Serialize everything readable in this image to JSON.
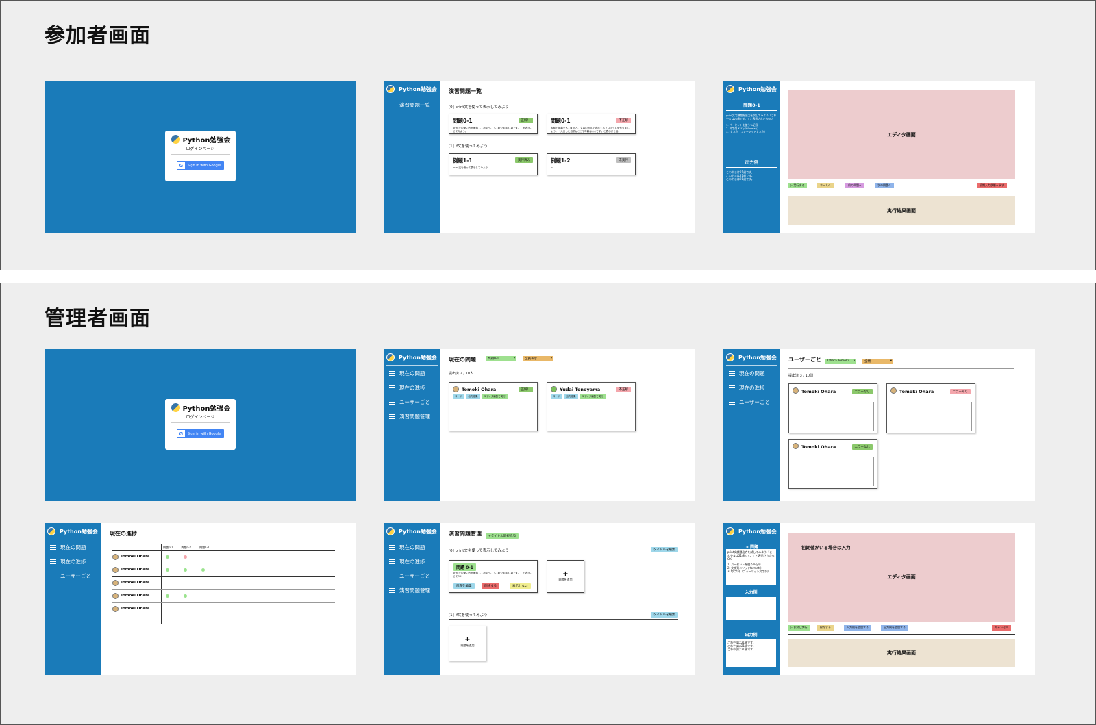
{
  "brand": "Python勉強会",
  "participant": {
    "title": "参加者画面",
    "login": {
      "brand": "Python勉強会",
      "subtitle": "ログインページ",
      "google": "Sign in with Google"
    },
    "list": {
      "nav": [
        "演習問題一覧"
      ],
      "title": "演習問題一覧",
      "group0": "[0] print文を使って表示してみよう",
      "group1": "[1] if文を使ってみよう",
      "cards": [
        {
          "name": "問題0-1",
          "badge": "正解！",
          "desc": "print文の使い方を確認してみよう。「こわやまは21歳です。」を表示させてみよう。"
        },
        {
          "name": "問題0-1",
          "badge": "不正解",
          "desc": "名前と年齢を入力すると、文章の形式で表示するプログラムを作りましょう。「入力した名前は○○で年齢は○○です」と表示させる。"
        },
        {
          "name": "例題1-1",
          "badge": "実行済み",
          "desc": "print文を使って表示してみよう"
        },
        {
          "name": "例題1-2",
          "badge": "未実行",
          "desc": ">"
        }
      ]
    },
    "editor": {
      "problem_title": "問題0-1",
      "problem_text": "print文で課題を出力を試してみよう「こわやまは21歳です。」と表示されたらOK！",
      "hints": [
        "1. パーセントを使う%記号",
        "2. 文字列メソッドformat()",
        "3. f文字列（フォーマット文字列）"
      ],
      "output_title": "出力例",
      "output_lines": [
        "こわやまは21歳です。",
        "こわやまは21歳です。",
        "こわやまは21歳です。"
      ],
      "editor_label": "エディタ画面",
      "result_label": "実行結果画面",
      "buttons": [
        "▷ 実行する",
        "ホームへ",
        "前の問題へ",
        "次の問題へ",
        "初期入力状態へ戻す"
      ]
    }
  },
  "admin": {
    "title": "管理者画面",
    "login": {
      "brand": "Python勉強会",
      "subtitle": "ログインページ",
      "google": "Sign in with Google"
    },
    "nav_basic": [
      "現在の問題",
      "現在の進捗",
      "ユーザーごと"
    ],
    "nav_full": [
      "現在の問題",
      "現在の進捗",
      "ユーザーごと",
      "演習問題管理"
    ],
    "current": {
      "title": "現在の問題",
      "select1": "問題0-1",
      "select2": "全員表示",
      "progress": "提出済 2 / 10人",
      "cards": [
        {
          "user": "Tomoki Ohara",
          "badge": "正解！"
        },
        {
          "user": "Yudai Tonoyama",
          "badge": "不正解"
        }
      ],
      "tags": [
        "コード",
        "出力結果",
        "エディタ編集で実行"
      ]
    },
    "byuser": {
      "title": "ユーザーごと",
      "select1": "Ohara Tomoki",
      "select2": "全問",
      "progress": "提出済 3 / 10問",
      "cards": [
        {
          "user": "Tomoki Ohara",
          "badge": "エラーなし"
        },
        {
          "user": "Tomoki Ohara",
          "badge": "エラーあり"
        },
        {
          "user": "Tomoki Ohara",
          "badge": "エラーなし"
        }
      ]
    },
    "progress": {
      "title": "現在の進捗",
      "cols": [
        "問題0-1",
        "問題0-2",
        "問題1-1"
      ],
      "users": [
        "Tomoki Ohara",
        "Tomoki Ohara",
        "Tomoki Ohara",
        "Tomoki Ohara",
        "Tomoki Ohara"
      ]
    },
    "manage": {
      "title": "演習問題管理",
      "add_title": "+タイトル新規追加",
      "group0": "[0] print文を使って表示してみよう",
      "group1": "[1] if文を使ってみよう",
      "edit_title": "タイトルを編集",
      "card_name": "問題 0-1",
      "card_desc": "print文の使い方を確認してみよう。「こわやまは21歳です。」と表示させてOK！",
      "card_btns": [
        "内容を編集",
        "削除する",
        "表示しない"
      ],
      "add_problem": "問題を追加"
    },
    "edit": {
      "problem_label": "> 問題",
      "problem_text": "print文課題出力を試してみよう「こわやまは21歳です。」と表示されたらOK！",
      "hints": [
        "1. パーセントを使う%記号",
        "2. 文字列メソッドformat()",
        "3. f文字列（フォーマット文字列）"
      ],
      "input_title": "入力例",
      "output_title": "出力例",
      "output_lines": [
        "こわやまは21歳です。",
        "こわやまは21歳です。",
        "こわやまは21歳です。"
      ],
      "initial_label": "初期値がいる場合は入力",
      "editor_label": "エディタ画面",
      "result_label": "実行結果画面",
      "buttons": [
        "▷ お試し実行",
        "保存する",
        "入力例を追加する",
        "出力例を追加する",
        "キャンセル"
      ]
    }
  }
}
